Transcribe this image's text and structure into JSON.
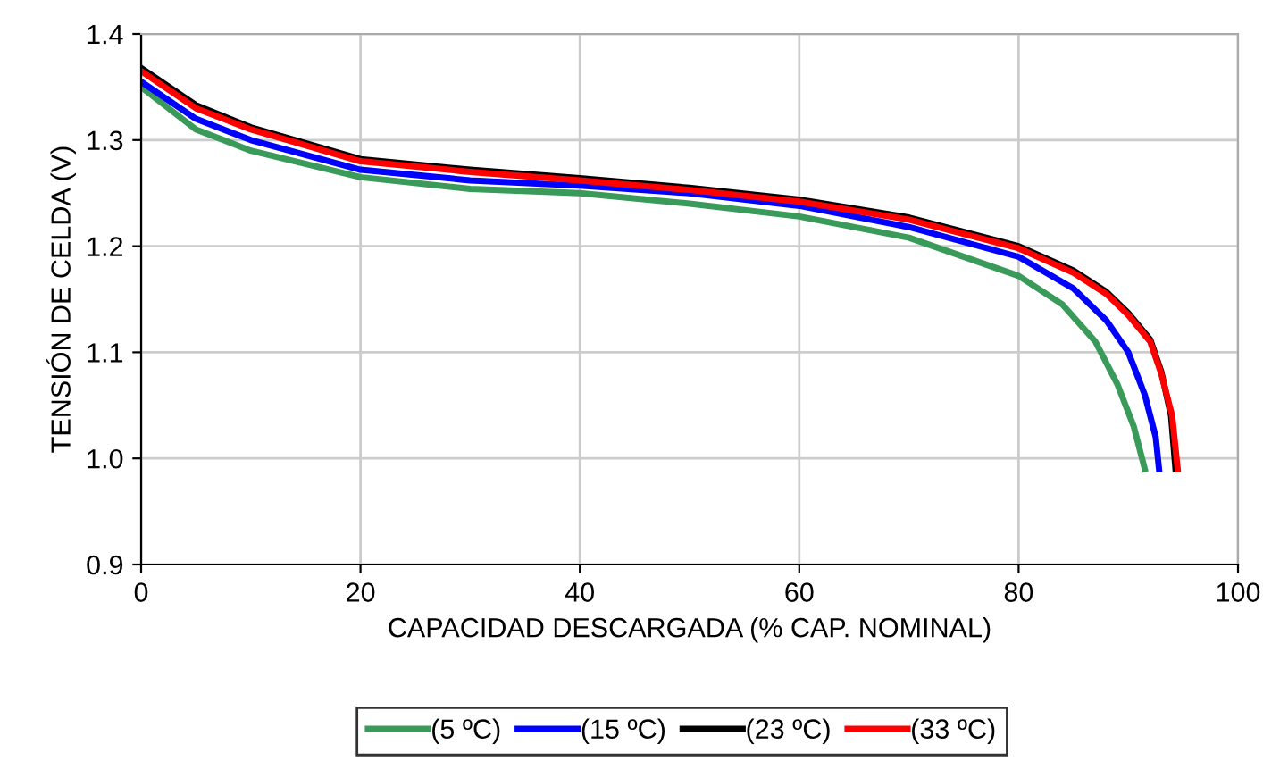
{
  "chart_data": {
    "type": "line",
    "xlabel": "CAPACIDAD DESCARGADA (% CAP. NOMINAL)",
    "ylabel": "TENSIÓN DE CELDA (V)",
    "xlim": [
      0,
      100
    ],
    "ylim": [
      0.9,
      1.4
    ],
    "xticks": [
      0,
      20,
      40,
      60,
      80,
      100
    ],
    "yticks": [
      {
        "value": 0.9,
        "label": "0.9"
      },
      {
        "value": 1.0,
        "label": "1.0"
      },
      {
        "value": 1.1,
        "label": "1.1"
      },
      {
        "value": 1.2,
        "label": "1.2"
      },
      {
        "value": 1.3,
        "label": "1.3"
      },
      {
        "value": 1.4,
        "label": "1.4"
      }
    ],
    "grid": true,
    "legend": "bottom",
    "marker": "none",
    "line_style": "solid",
    "series": [
      {
        "name": "(5 ºC)",
        "color": "#3a9a5a",
        "x": [
          0,
          5,
          10,
          20,
          30,
          40,
          50,
          60,
          70,
          80,
          84,
          87,
          89,
          90.5,
          91.5
        ],
        "values": [
          1.35,
          1.31,
          1.29,
          1.265,
          1.254,
          1.25,
          1.24,
          1.228,
          1.208,
          1.172,
          1.145,
          1.11,
          1.07,
          1.03,
          0.99
        ]
      },
      {
        "name": "(15 ºC)",
        "color": "#0000ff",
        "x": [
          0,
          5,
          10,
          20,
          30,
          40,
          50,
          60,
          70,
          80,
          85,
          88,
          90,
          91.5,
          92.5,
          92.8
        ],
        "values": [
          1.355,
          1.32,
          1.3,
          1.272,
          1.262,
          1.257,
          1.25,
          1.238,
          1.218,
          1.19,
          1.16,
          1.13,
          1.1,
          1.06,
          1.02,
          0.99
        ]
      },
      {
        "name": "(23 ºC)",
        "color": "#000000",
        "x": [
          0,
          5,
          10,
          20,
          30,
          40,
          50,
          60,
          70,
          80,
          85,
          88,
          90,
          92,
          93,
          93.9,
          94.3
        ],
        "values": [
          1.368,
          1.333,
          1.312,
          1.282,
          1.272,
          1.264,
          1.255,
          1.244,
          1.227,
          1.2,
          1.177,
          1.157,
          1.137,
          1.112,
          1.082,
          1.04,
          0.99
        ]
      },
      {
        "name": "(33 ºC)",
        "color": "#ff0000",
        "x": [
          0,
          5,
          10,
          20,
          30,
          40,
          50,
          60,
          70,
          80,
          85,
          88,
          90,
          92,
          93,
          94,
          94.5
        ],
        "values": [
          1.365,
          1.33,
          1.31,
          1.28,
          1.27,
          1.262,
          1.253,
          1.242,
          1.225,
          1.198,
          1.175,
          1.155,
          1.135,
          1.11,
          1.08,
          1.04,
          0.99
        ]
      }
    ]
  }
}
